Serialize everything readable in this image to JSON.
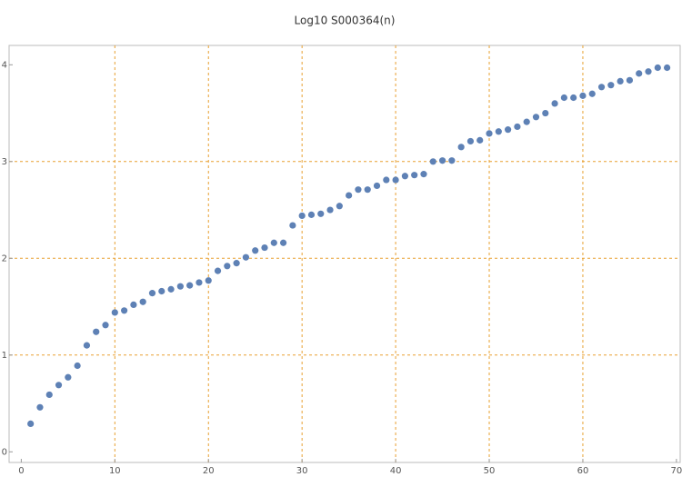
{
  "chart_data": {
    "type": "scatter",
    "title": "Log10 S000364(n)",
    "x": [
      1,
      2,
      3,
      4,
      5,
      6,
      7,
      8,
      9,
      10,
      11,
      12,
      13,
      14,
      15,
      16,
      17,
      18,
      19,
      20,
      21,
      22,
      23,
      24,
      25,
      26,
      27,
      28,
      29,
      30,
      31,
      32,
      33,
      34,
      35,
      36,
      37,
      38,
      39,
      40,
      41,
      42,
      43,
      44,
      45,
      46,
      47,
      48,
      49,
      50,
      51,
      52,
      53,
      54,
      55,
      56,
      57,
      58,
      59,
      60,
      61,
      62,
      63,
      64,
      65,
      66,
      67,
      68,
      69
    ],
    "values": [
      0.29,
      0.46,
      0.59,
      0.69,
      0.77,
      0.89,
      1.1,
      1.24,
      1.31,
      1.44,
      1.46,
      1.52,
      1.55,
      1.64,
      1.66,
      1.68,
      1.71,
      1.72,
      1.75,
      1.77,
      1.87,
      1.92,
      1.95,
      2.01,
      2.08,
      2.11,
      2.16,
      2.16,
      2.34,
      2.44,
      2.45,
      2.46,
      2.5,
      2.54,
      2.65,
      2.71,
      2.71,
      2.75,
      2.81,
      2.81,
      2.85,
      2.86,
      2.87,
      3.0,
      3.01,
      3.01,
      3.15,
      3.21,
      3.22,
      3.29,
      3.31,
      3.33,
      3.36,
      3.41,
      3.46,
      3.5,
      3.6,
      3.66,
      3.66,
      3.68,
      3.7,
      3.77,
      3.79,
      3.83,
      3.84,
      3.91,
      3.93,
      3.97,
      3.97
    ],
    "color": "#5e81b5",
    "xlim": [
      -1.3,
      70.4
    ],
    "ylim": [
      -0.11,
      4.2
    ],
    "xticks": [
      0,
      10,
      20,
      30,
      40,
      50,
      60,
      70
    ],
    "yticks": [
      0,
      1,
      2,
      3,
      4
    ],
    "xgrid": [
      10,
      20,
      30,
      40,
      50,
      60
    ],
    "ygrid": [
      1,
      2,
      3
    ],
    "grid_color": "#e8a030"
  }
}
